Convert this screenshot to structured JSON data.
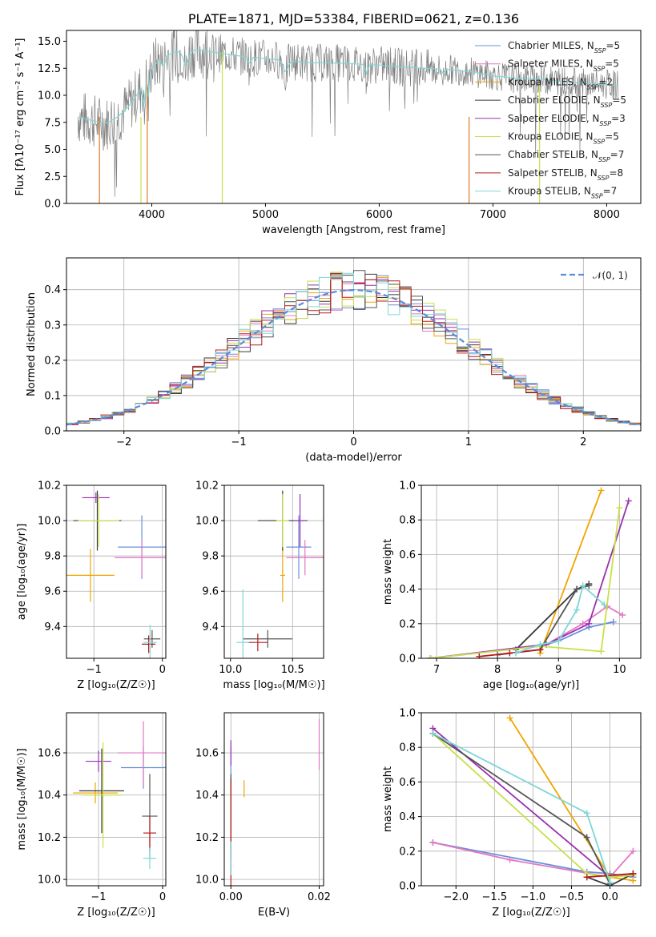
{
  "colors": [
    "#6a8fd8",
    "#e377c2",
    "#f0a500",
    "#3a3a3a",
    "#9b30b0",
    "#c8e04a",
    "#555555",
    "#b81c1c",
    "#7fd6d6"
  ],
  "chart_data": [
    {
      "id": "spectrum",
      "type": "line",
      "title": "PLATE=1871, MJD=53384, FIBERID=0621, z=0.136",
      "xlabel": "wavelength [Angstrom, rest frame]",
      "ylabel": "Flux [fλ10⁻¹⁷ erg cm⁻² s⁻¹ A⁻¹]",
      "xlim": [
        3250,
        8300
      ],
      "ylim": [
        0,
        16
      ],
      "xticks": [
        "4000",
        "5000",
        "6000",
        "7000",
        "8000"
      ],
      "yticks": [
        "0.0",
        "2.5",
        "5.0",
        "7.5",
        "10.0",
        "12.5",
        "15.0"
      ],
      "legend_position": "right",
      "grid": false,
      "series": [
        {
          "name": "Chabrier MILES, N_SSP=5"
        },
        {
          "name": "Salpeter MILES, N_SSP=5"
        },
        {
          "name": "Kroupa MILES, N_SSP=2"
        },
        {
          "name": "Chabrier ELODIE, N_SSP=5"
        },
        {
          "name": "Salpeter ELODIE, N_SSP=3"
        },
        {
          "name": "Kroupa ELODIE, N_SSP=5"
        },
        {
          "name": "Chabrier STELIB, N_SSP=7"
        },
        {
          "name": "Salpeter STELIB, N_SSP=8"
        },
        {
          "name": "Kroupa STELIB, N_SSP=7"
        }
      ],
      "continuum": {
        "x": [
          3350,
          3500,
          3600,
          3700,
          3800,
          3900,
          4000,
          4100,
          4200,
          4400,
          4600,
          4800,
          5000,
          5200,
          5400,
          5600,
          5800,
          6000,
          6200,
          6400,
          6600,
          6800,
          7000,
          7200,
          7400,
          7600,
          7800,
          8000,
          8100
        ],
        "y": [
          8.0,
          7.6,
          7.4,
          8.0,
          9.0,
          10.5,
          12.6,
          13.5,
          14.0,
          14.2,
          13.9,
          13.6,
          13.4,
          13.2,
          13.0,
          13.0,
          12.9,
          12.8,
          12.6,
          12.5,
          12.4,
          12.2,
          11.8,
          11.6,
          11.5,
          11.3,
          11.1,
          11.0,
          10.9
        ]
      }
    },
    {
      "id": "residuals",
      "type": "bar",
      "xlabel": "(data-model)/error",
      "ylabel": "Normed distribution",
      "xlim": [
        -2.5,
        2.5
      ],
      "ylim": [
        0,
        0.49
      ],
      "xticks": [
        "−2",
        "−1",
        "0",
        "1",
        "2"
      ],
      "yticks": [
        "0.0",
        "0.1",
        "0.2",
        "0.3",
        "0.4"
      ],
      "legend": "𝒩(0, 1)",
      "legend_position": "top-right",
      "grid": true
    },
    {
      "id": "age-vs-Z",
      "type": "scatter",
      "xlabel": "Z [log₁₀(Z/Z☉)]",
      "ylabel": "age  [log₁₀(age/yr)]",
      "xlim": [
        -1.4,
        0.05
      ],
      "ylim": [
        9.22,
        10.2
      ],
      "xticks": [
        "−1",
        "0"
      ],
      "yticks": [
        "9.4",
        "9.6",
        "9.8",
        "10.0",
        "10.2"
      ],
      "points": [
        {
          "x": -0.3,
          "y": 9.85,
          "xerr": 0.35,
          "yerr": 0.18,
          "c": 0
        },
        {
          "x": -0.3,
          "y": 9.79,
          "xerr": 0.4,
          "yerr": 0.1,
          "c": 1
        },
        {
          "x": -1.05,
          "y": 9.69,
          "xerr": 0.35,
          "yerr": 0.15,
          "c": 2
        },
        {
          "x": -0.95,
          "y": 10.0,
          "xerr": 0.35,
          "yerr": 0.17,
          "c": 3
        },
        {
          "x": -0.97,
          "y": 10.13,
          "xerr": 0.2,
          "yerr": 0.03,
          "c": 4
        },
        {
          "x": -0.93,
          "y": 10.0,
          "xerr": 0.3,
          "yerr": 0.15,
          "c": 5
        },
        {
          "x": -0.15,
          "y": 9.33,
          "xerr": 0.12,
          "yerr": 0.05,
          "c": 6
        },
        {
          "x": -0.2,
          "y": 9.3,
          "xerr": 0.1,
          "yerr": 0.05,
          "c": 7
        },
        {
          "x": -0.18,
          "y": 9.31,
          "xerr": 0.1,
          "yerr": 0.1,
          "c": 8
        }
      ]
    },
    {
      "id": "age-vs-mass",
      "type": "scatter",
      "xlabel": "mass [log₁₀(M/M☉)]",
      "ylabel": "",
      "xlim": [
        9.95,
        10.75
      ],
      "ylim": [
        9.22,
        10.2
      ],
      "xticks": [
        "10.0",
        "10.5"
      ],
      "yticks": [
        "9.4",
        "9.6",
        "9.8",
        "10.0",
        "10.2"
      ],
      "points": [
        {
          "x": 10.55,
          "y": 9.85,
          "xerr": 0.1,
          "yerr": 0.18,
          "c": 0
        },
        {
          "x": 10.6,
          "y": 9.79,
          "xerr": 0.15,
          "yerr": 0.1,
          "c": 1
        },
        {
          "x": 10.42,
          "y": 9.69,
          "xerr": 0.02,
          "yerr": 0.15,
          "c": 2
        },
        {
          "x": 10.42,
          "y": 10.0,
          "xerr": 0.2,
          "yerr": 0.17,
          "c": 3
        },
        {
          "x": 10.56,
          "y": 10.0,
          "xerr": 0.05,
          "yerr": 0.15,
          "c": 4
        },
        {
          "x": 10.42,
          "y": 10.0,
          "xerr": 0.05,
          "yerr": 0.15,
          "c": 5
        },
        {
          "x": 10.3,
          "y": 9.33,
          "xerr": 0.2,
          "yerr": 0.05,
          "c": 6
        },
        {
          "x": 10.22,
          "y": 9.31,
          "xerr": 0.08,
          "yerr": 0.05,
          "c": 7
        },
        {
          "x": 10.1,
          "y": 9.31,
          "xerr": 0.05,
          "yerr": 0.3,
          "c": 8
        }
      ]
    },
    {
      "id": "weight-vs-age",
      "type": "line",
      "xlabel": "age  [log₁₀(age/yr)]",
      "ylabel": "mass weight",
      "xlim": [
        6.75,
        10.35
      ],
      "ylim": [
        0,
        1.0
      ],
      "xticks": [
        "7",
        "8",
        "9",
        "10"
      ],
      "yticks": [
        "0.0",
        "0.2",
        "0.4",
        "0.6",
        "0.8",
        "1.0"
      ],
      "series": [
        {
          "c": 0,
          "x": [
            6.9,
            8.7,
            9.0,
            9.5,
            9.9
          ],
          "y": [
            0.0,
            0.07,
            0.1,
            0.18,
            0.21
          ]
        },
        {
          "c": 1,
          "x": [
            6.9,
            8.8,
            9.4,
            9.8,
            10.05
          ],
          "y": [
            0.0,
            0.08,
            0.2,
            0.3,
            0.25
          ]
        },
        {
          "c": 2,
          "x": [
            8.7,
            9.7
          ],
          "y": [
            0.03,
            0.97
          ]
        },
        {
          "c": 3,
          "x": [
            8.3,
            9.3,
            9.5
          ],
          "y": [
            0.05,
            0.4,
            0.43
          ]
        },
        {
          "c": 4,
          "x": [
            6.9,
            8.8,
            9.5,
            10.15
          ],
          "y": [
            0.0,
            0.08,
            0.2,
            0.91
          ]
        },
        {
          "c": 5,
          "x": [
            6.9,
            8.7,
            9.7,
            10.0
          ],
          "y": [
            0.0,
            0.07,
            0.04,
            0.87
          ]
        },
        {
          "c": 6,
          "x": [
            8.0,
            8.7,
            9.3,
            9.5
          ],
          "y": [
            0.02,
            0.05,
            0.4,
            0.42
          ]
        },
        {
          "c": 7,
          "x": [
            7.7,
            8.2,
            8.7
          ],
          "y": [
            0.01,
            0.03,
            0.05
          ]
        },
        {
          "c": 8,
          "x": [
            8.3,
            8.7,
            9.0,
            9.3,
            9.4,
            9.75
          ],
          "y": [
            0.03,
            0.08,
            0.1,
            0.28,
            0.42,
            0.31
          ]
        }
      ]
    },
    {
      "id": "mass-vs-Z",
      "type": "scatter",
      "xlabel": "Z [log₁₀(Z/Z☉)]",
      "ylabel": "mass [log₁₀(M/M☉)]",
      "xlim": [
        -1.5,
        0.05
      ],
      "ylim": [
        9.97,
        10.79
      ],
      "xticks": [
        "−1",
        "0"
      ],
      "yticks": [
        "10.0",
        "10.2",
        "10.4",
        "10.6"
      ],
      "points": [
        {
          "x": -0.3,
          "y": 10.53,
          "xerr": 0.35,
          "yerr": 0.1,
          "c": 0
        },
        {
          "x": -0.3,
          "y": 10.6,
          "xerr": 0.4,
          "yerr": 0.15,
          "c": 1
        },
        {
          "x": -1.05,
          "y": 10.41,
          "xerr": 0.35,
          "yerr": 0.05,
          "c": 2
        },
        {
          "x": -0.95,
          "y": 10.42,
          "xerr": 0.35,
          "yerr": 0.2,
          "c": 3
        },
        {
          "x": -1.0,
          "y": 10.56,
          "xerr": 0.2,
          "yerr": 0.05,
          "c": 4
        },
        {
          "x": -0.93,
          "y": 10.4,
          "xerr": 0.3,
          "yerr": 0.25,
          "c": 5
        },
        {
          "x": -0.2,
          "y": 10.3,
          "xerr": 0.12,
          "yerr": 0.2,
          "c": 6
        },
        {
          "x": -0.2,
          "y": 10.22,
          "xerr": 0.1,
          "yerr": 0.08,
          "c": 7
        },
        {
          "x": -0.2,
          "y": 10.1,
          "xerr": 0.1,
          "yerr": 0.05,
          "c": 8
        }
      ]
    },
    {
      "id": "mass-vs-EBV",
      "type": "scatter",
      "xlabel": "E(B-V)",
      "ylabel": "",
      "xlim": [
        -0.0015,
        0.021
      ],
      "ylim": [
        9.97,
        10.79
      ],
      "xticks": [
        "0.00",
        "0.02"
      ],
      "yticks": [
        "10.0",
        "10.2",
        "10.4",
        "10.6"
      ],
      "points": [
        {
          "x": 0.0,
          "y": 10.53,
          "xerr": 0,
          "yerr": 0.1,
          "c": 0
        },
        {
          "x": 0.02,
          "y": 10.64,
          "xerr": 0,
          "yerr": 0.12,
          "c": 1
        },
        {
          "x": 0.003,
          "y": 10.43,
          "xerr": 0,
          "yerr": 0.04,
          "c": 2
        },
        {
          "x": 0.0,
          "y": 10.42,
          "xerr": 0,
          "yerr": 0.06,
          "c": 3
        },
        {
          "x": 0.0,
          "y": 10.6,
          "xerr": 0,
          "yerr": 0.06,
          "c": 4
        },
        {
          "x": 0.0,
          "y": 10.4,
          "xerr": 0,
          "yerr": 0.05,
          "c": 5
        },
        {
          "x": 0.0,
          "y": 10.3,
          "xerr": 0,
          "yerr": 0.2,
          "c": 6
        },
        {
          "x": 0.0,
          "y": 10.22,
          "xerr": 0,
          "yerr": 0.25,
          "c": 7
        },
        {
          "x": 0.0,
          "y": 10.1,
          "xerr": 0,
          "yerr": 0.08,
          "c": 8
        }
      ]
    },
    {
      "id": "weight-vs-Z",
      "type": "line",
      "xlabel": "Z [log₁₀(Z/Z☉)]",
      "ylabel": "mass weight",
      "xlim": [
        -2.45,
        0.4
      ],
      "ylim": [
        0,
        1.0
      ],
      "xticks": [
        "−2.0",
        "−1.5",
        "−1.0",
        "−0.5",
        "0.0"
      ],
      "yticks": [
        "0.0",
        "0.2",
        "0.4",
        "0.6",
        "0.8",
        "1.0"
      ],
      "series": [
        {
          "c": 0,
          "x": [
            -2.3,
            -0.3,
            0.0,
            0.3
          ],
          "y": [
            0.25,
            0.08,
            0.07,
            0.05
          ]
        },
        {
          "c": 1,
          "x": [
            -2.3,
            -1.3,
            0.0,
            0.3
          ],
          "y": [
            0.25,
            0.15,
            0.05,
            0.2
          ]
        },
        {
          "c": 2,
          "x": [
            -1.3,
            0.0,
            0.3
          ],
          "y": [
            0.97,
            0.05,
            0.03
          ]
        },
        {
          "c": 3,
          "x": [
            -0.3,
            0.0,
            0.3
          ],
          "y": [
            0.05,
            0.0,
            0.07
          ]
        },
        {
          "c": 4,
          "x": [
            -2.3,
            0.0,
            0.3
          ],
          "y": [
            0.91,
            0.05,
            0.07
          ]
        },
        {
          "c": 5,
          "x": [
            -2.3,
            -0.3,
            0.0,
            0.3
          ],
          "y": [
            0.88,
            0.07,
            0.05,
            0.06
          ]
        },
        {
          "c": 6,
          "x": [
            -2.3,
            -0.3,
            0.0
          ],
          "y": [
            0.88,
            0.28,
            0.01
          ]
        },
        {
          "c": 7,
          "x": [
            -0.3,
            0.3
          ],
          "y": [
            0.05,
            0.07
          ]
        },
        {
          "c": 8,
          "x": [
            -2.3,
            -0.3,
            0.0
          ],
          "y": [
            0.88,
            0.42,
            0.02
          ]
        }
      ]
    }
  ]
}
